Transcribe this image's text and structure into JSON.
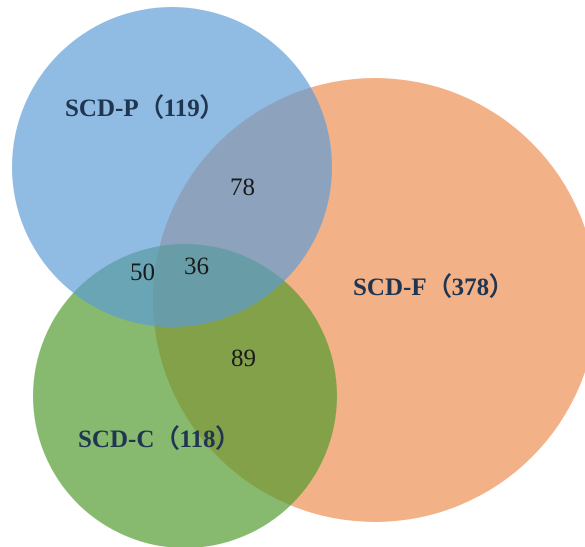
{
  "sets": [
    {
      "id": "p",
      "label": "SCD-P（119）",
      "color": "#5b9bd5"
    },
    {
      "id": "f",
      "label": "SCD-F（378）",
      "color": "#f0a06e"
    },
    {
      "id": "c",
      "label": "SCD-C（118）",
      "color": "#4e9a2a"
    }
  ],
  "intersections": {
    "p_f": "78",
    "p_c": "50",
    "p_f_c": "36",
    "f_c": "89"
  },
  "colors": {
    "label_text": "#1f3550",
    "number_text": "#1a1a1a",
    "background": "#ffffff"
  }
}
